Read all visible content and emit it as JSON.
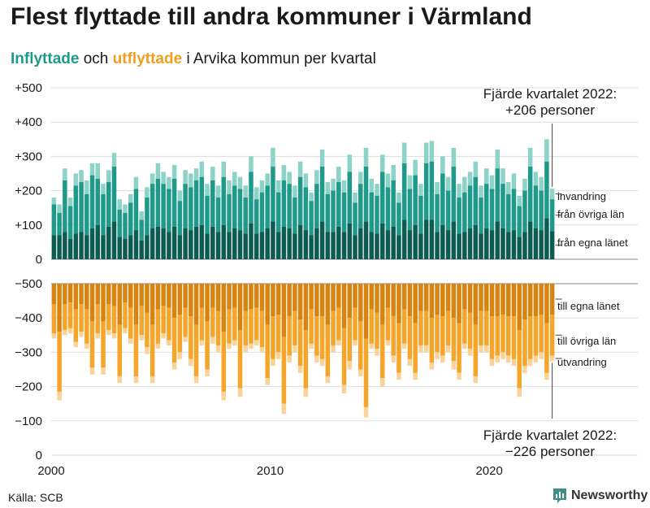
{
  "title": "Flest flyttade till andra kommuner i Värmland",
  "subtitle": {
    "in_word": "Inflyttade",
    "and_word": "och",
    "out_word": "utflyttade",
    "rest": "i Arvika kommun per kvartal"
  },
  "source": "Källa: SCB",
  "brand": "Newsworthy",
  "colors": {
    "in_egna": "#0d5c52",
    "in_ovriga": "#1f9a8a",
    "in_inv": "#8ed3c8",
    "out_egna": "#d98410",
    "out_ovriga": "#f5a52a",
    "out_utv": "#fad39a",
    "grid": "#dddddd"
  },
  "chart_data": {
    "type": "bar",
    "subtype": "stacked, mirrored (positive in, negative out)",
    "x_unit": "quarter",
    "x_start": "2000 Q1",
    "x_end": "2022 Q4",
    "xlim": [
      2000,
      2023
    ],
    "x_ticks": [
      "2000",
      "2010",
      "2020"
    ],
    "ylim": [
      -500,
      500
    ],
    "y_ticks": [
      "+500",
      "+400",
      "+300",
      "+200",
      "+100",
      "0",
      "0",
      "−100",
      "−200",
      "−300",
      "−400",
      "−500"
    ],
    "grid": true,
    "inflow_totals": [
      180,
      160,
      265,
      180,
      250,
      260,
      230,
      280,
      280,
      220,
      260,
      310,
      175,
      160,
      190,
      240,
      140,
      210,
      250,
      280,
      255,
      240,
      275,
      200,
      260,
      250,
      265,
      285,
      220,
      270,
      215,
      285,
      230,
      255,
      240,
      215,
      300,
      210,
      230,
      250,
      325,
      230,
      275,
      255,
      215,
      285,
      250,
      195,
      260,
      320,
      225,
      235,
      270,
      230,
      305,
      195,
      255,
      325,
      235,
      220,
      305,
      250,
      275,
      195,
      340,
      245,
      290,
      220,
      340,
      345,
      225,
      300,
      240,
      325,
      220,
      240,
      255,
      285,
      215,
      265,
      245,
      320,
      265,
      225,
      250,
      185,
      235,
      325,
      255,
      240,
      350,
      206
    ],
    "inflow_egna": [
      70,
      70,
      80,
      60,
      75,
      80,
      70,
      90,
      100,
      70,
      95,
      110,
      65,
      60,
      70,
      85,
      55,
      70,
      90,
      95,
      90,
      80,
      95,
      70,
      90,
      85,
      95,
      100,
      75,
      95,
      80,
      100,
      80,
      90,
      85,
      75,
      105,
      75,
      80,
      90,
      110,
      80,
      95,
      90,
      75,
      100,
      85,
      70,
      90,
      110,
      80,
      80,
      95,
      80,
      105,
      70,
      90,
      110,
      80,
      75,
      105,
      85,
      95,
      70,
      115,
      85,
      100,
      75,
      115,
      115,
      80,
      100,
      85,
      110,
      75,
      80,
      90,
      100,
      75,
      90,
      85,
      110,
      90,
      80,
      85,
      65,
      80,
      110,
      90,
      85,
      120,
      82
    ],
    "inflow_ovriga": [
      90,
      65,
      150,
      95,
      140,
      145,
      120,
      155,
      135,
      120,
      130,
      160,
      80,
      75,
      95,
      120,
      60,
      110,
      130,
      140,
      130,
      125,
      140,
      100,
      130,
      125,
      135,
      140,
      110,
      135,
      100,
      140,
      110,
      125,
      120,
      105,
      150,
      100,
      115,
      125,
      160,
      115,
      135,
      130,
      105,
      140,
      125,
      100,
      130,
      160,
      110,
      120,
      130,
      115,
      150,
      95,
      130,
      160,
      115,
      110,
      150,
      125,
      135,
      95,
      165,
      120,
      145,
      110,
      165,
      170,
      110,
      150,
      115,
      160,
      105,
      115,
      125,
      140,
      105,
      130,
      120,
      155,
      130,
      110,
      120,
      90,
      120,
      160,
      125,
      115,
      165,
      93
    ],
    "outflow_totals": [
      -160,
      -340,
      -150,
      -145,
      -185,
      -155,
      -190,
      -265,
      -160,
      -265,
      -150,
      -160,
      -290,
      -145,
      -175,
      -290,
      -165,
      -205,
      -290,
      -190,
      -160,
      -180,
      -250,
      -220,
      -170,
      -240,
      -290,
      -180,
      -270,
      -175,
      -200,
      -340,
      -190,
      -180,
      -330,
      -200,
      -190,
      -180,
      -200,
      -295,
      -240,
      -220,
      -380,
      -230,
      -200,
      -260,
      -330,
      -190,
      -230,
      -240,
      -290,
      -200,
      -180,
      -320,
      -250,
      -180,
      -270,
      -390,
      -190,
      -210,
      -300,
      -180,
      -230,
      -280,
      -190,
      -240,
      -280,
      -200,
      -200,
      -250,
      -220,
      -230,
      -200,
      -250,
      -280,
      -190,
      -210,
      -290,
      -200,
      -200,
      -240,
      -230,
      -220,
      -230,
      -240,
      -330,
      -260,
      -240,
      -230,
      -220,
      -280,
      -226
    ],
    "outflow_egna": [
      -60,
      -140,
      -60,
      -55,
      -75,
      -60,
      -75,
      -110,
      -60,
      -110,
      -60,
      -65,
      -120,
      -55,
      -70,
      -120,
      -65,
      -85,
      -120,
      -75,
      -65,
      -70,
      -100,
      -90,
      -70,
      -95,
      -120,
      -70,
      -110,
      -70,
      -80,
      -140,
      -75,
      -70,
      -135,
      -80,
      -75,
      -70,
      -80,
      -120,
      -95,
      -90,
      -155,
      -95,
      -80,
      -105,
      -135,
      -75,
      -95,
      -95,
      -120,
      -80,
      -70,
      -130,
      -100,
      -70,
      -110,
      -160,
      -75,
      -85,
      -120,
      -70,
      -95,
      -115,
      -75,
      -95,
      -115,
      -80,
      -80,
      -100,
      -90,
      -95,
      -80,
      -100,
      -115,
      -75,
      -85,
      -120,
      -80,
      -80,
      -95,
      -95,
      -90,
      -95,
      -95,
      -135,
      -105,
      -95,
      -95,
      -90,
      -115,
      -90
    ],
    "outflow_ovriga": [
      -85,
      -175,
      -75,
      -75,
      -95,
      -80,
      -100,
      -135,
      -85,
      -135,
      -75,
      -80,
      -150,
      -75,
      -90,
      -150,
      -85,
      -100,
      -150,
      -100,
      -80,
      -95,
      -130,
      -110,
      -85,
      -125,
      -150,
      -95,
      -140,
      -85,
      -100,
      -175,
      -100,
      -95,
      -170,
      -100,
      -100,
      -95,
      -105,
      -155,
      -125,
      -110,
      -195,
      -115,
      -100,
      -135,
      -170,
      -100,
      -115,
      -125,
      -150,
      -100,
      -95,
      -165,
      -125,
      -95,
      -140,
      -200,
      -100,
      -105,
      -155,
      -95,
      -115,
      -145,
      -100,
      -125,
      -145,
      -100,
      -100,
      -130,
      -110,
      -115,
      -100,
      -125,
      -145,
      -100,
      -105,
      -150,
      -100,
      -100,
      -125,
      -115,
      -110,
      -115,
      -125,
      -170,
      -135,
      -125,
      -115,
      -110,
      -145,
      -120
    ],
    "in_legend": [
      "invandring",
      "från övriga län",
      "från egna länet"
    ],
    "out_legend": [
      "till egna länet",
      "till övriga län",
      "utvandring"
    ],
    "annotations": {
      "top": [
        "Fjärde kvartalet 2022:",
        "+206 personer"
      ],
      "bottom": [
        "Fjärde kvartalet 2022:",
        "−226 personer"
      ]
    }
  }
}
